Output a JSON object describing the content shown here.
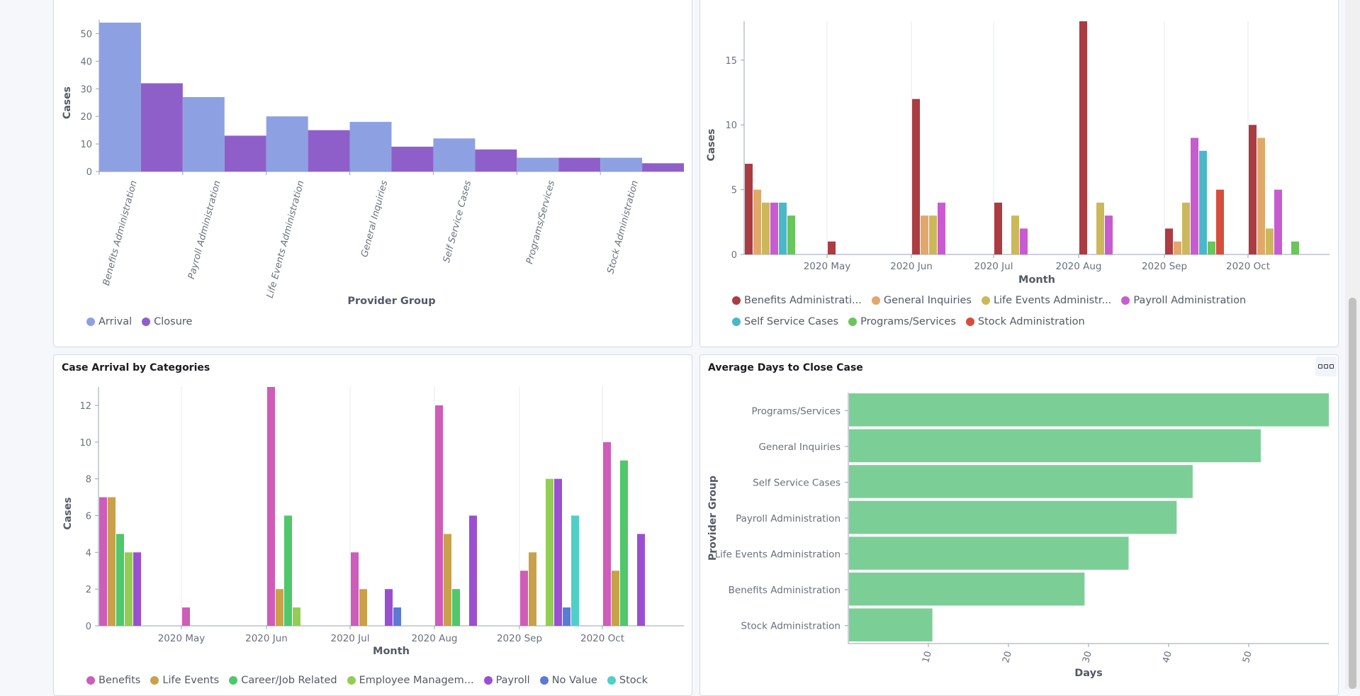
{
  "panels": {
    "case_arrival_closure": {
      "title": "",
      "legend": [
        {
          "label": "Arrival",
          "color": "#8da0e2"
        },
        {
          "label": "Closure",
          "color": "#8f5fc9"
        }
      ]
    },
    "case_arrival_provider_group": {
      "title": "",
      "legend": [
        {
          "label": "Benefits Administrati...",
          "color": "#aa3c42"
        },
        {
          "label": "General Inquiries",
          "color": "#e0a86a"
        },
        {
          "label": "Life Events Administr...",
          "color": "#cbb85a"
        },
        {
          "label": "Payroll Administration",
          "color": "#c75bcf"
        },
        {
          "label": "Self Service Cases",
          "color": "#4ab8c8"
        },
        {
          "label": "Programs/Services",
          "color": "#6ac55c"
        },
        {
          "label": "Stock Administration",
          "color": "#d64e3c"
        }
      ]
    },
    "case_arrival_categories": {
      "title": "Case Arrival by Categories",
      "legend": [
        {
          "label": "Benefits",
          "color": "#cf5cb8"
        },
        {
          "label": "Life Events",
          "color": "#c9a14a"
        },
        {
          "label": "Career/Job Related",
          "color": "#4fc76a"
        },
        {
          "label": "Employee Managem...",
          "color": "#93cd55"
        },
        {
          "label": "Payroll",
          "color": "#9a4fd0"
        },
        {
          "label": "No Value",
          "color": "#5a7ad6"
        },
        {
          "label": "Stock",
          "color": "#4fcfc5"
        }
      ]
    },
    "avg_days_close": {
      "title": "Average Days to Close Case",
      "menu_icon": "options-icon"
    }
  },
  "chart_data": [
    {
      "type": "bar",
      "xlabel": "Provider Group",
      "ylabel": "Cases",
      "ylim": [
        0,
        55
      ],
      "yticks": [
        0,
        10,
        20,
        30,
        40,
        50
      ],
      "categories": [
        "Benefits Administration",
        "Payroll Administration",
        "Life Events Administration",
        "General Inquiries",
        "Self Service Cases",
        "Programs/Services",
        "Stock Administration"
      ],
      "series": [
        {
          "name": "Arrival",
          "color": "#8da0e2",
          "values": [
            54,
            27,
            20,
            18,
            12,
            5,
            5
          ]
        },
        {
          "name": "Closure",
          "color": "#8f5fc9",
          "values": [
            32,
            13,
            15,
            9,
            8,
            5,
            3
          ]
        }
      ]
    },
    {
      "type": "bar",
      "xlabel": "Month",
      "ylabel": "Cases",
      "ylim": [
        0,
        18
      ],
      "yticks": [
        0,
        5,
        10,
        15
      ],
      "x_ticks": [
        "2020 May",
        "2020 Jun",
        "2020 Jul",
        "2020 Aug",
        "2020 Sep",
        "2020 Oct"
      ],
      "series": [
        {
          "name": "Benefits Administration",
          "color": "#aa3c42",
          "values": [
            {
              "x": "2020 Apr",
              "y": 7
            },
            {
              "x": "2020 May",
              "y": 1
            },
            {
              "x": "2020 Jun",
              "y": 12
            },
            {
              "x": "2020 Jul",
              "y": 4
            },
            {
              "x": "2020 Aug",
              "y": 18
            },
            {
              "x": "2020 Sep",
              "y": 2
            },
            {
              "x": "2020 Oct",
              "y": 10
            }
          ]
        },
        {
          "name": "General Inquiries",
          "color": "#e0a86a",
          "values": [
            {
              "x": "2020 Apr",
              "y": 5
            },
            {
              "x": "2020 Jun",
              "y": 3
            },
            {
              "x": "2020 Sep",
              "y": 1
            },
            {
              "x": "2020 Oct",
              "y": 9
            }
          ]
        },
        {
          "name": "Life Events Administration",
          "color": "#cbb85a",
          "values": [
            {
              "x": "2020 Apr",
              "y": 4
            },
            {
              "x": "2020 Jun",
              "y": 3
            },
            {
              "x": "2020 Jul",
              "y": 3
            },
            {
              "x": "2020 Aug",
              "y": 4
            },
            {
              "x": "2020 Sep",
              "y": 4
            },
            {
              "x": "2020 Oct",
              "y": 2
            }
          ]
        },
        {
          "name": "Payroll Administration",
          "color": "#c75bcf",
          "values": [
            {
              "x": "2020 Apr",
              "y": 4
            },
            {
              "x": "2020 Jun",
              "y": 4
            },
            {
              "x": "2020 Jul",
              "y": 2
            },
            {
              "x": "2020 Aug",
              "y": 3
            },
            {
              "x": "2020 Sep",
              "y": 9
            },
            {
              "x": "2020 Oct",
              "y": 5
            }
          ]
        },
        {
          "name": "Self Service Cases",
          "color": "#4ab8c8",
          "values": [
            {
              "x": "2020 Apr",
              "y": 4
            },
            {
              "x": "2020 Sep",
              "y": 8
            }
          ]
        },
        {
          "name": "Programs/Services",
          "color": "#6ac55c",
          "values": [
            {
              "x": "2020 Apr",
              "y": 3
            },
            {
              "x": "2020 Sep",
              "y": 1
            },
            {
              "x": "2020 Oct",
              "y": 1
            }
          ]
        },
        {
          "name": "Stock Administration",
          "color": "#d64e3c",
          "values": [
            {
              "x": "2020 Sep",
              "y": 5
            }
          ]
        }
      ]
    },
    {
      "type": "bar",
      "title": "Case Arrival by Categories",
      "xlabel": "Month",
      "ylabel": "Cases",
      "ylim": [
        0,
        13
      ],
      "yticks": [
        0,
        2,
        4,
        6,
        8,
        10,
        12
      ],
      "x_ticks": [
        "2020 May",
        "2020 Jun",
        "2020 Jul",
        "2020 Aug",
        "2020 Sep",
        "2020 Oct"
      ],
      "series": [
        {
          "name": "Benefits",
          "color": "#cf5cb8",
          "values": [
            {
              "x": "2020 Apr",
              "y": 7
            },
            {
              "x": "2020 May",
              "y": 1
            },
            {
              "x": "2020 Jun",
              "y": 13
            },
            {
              "x": "2020 Jul",
              "y": 4
            },
            {
              "x": "2020 Aug",
              "y": 12
            },
            {
              "x": "2020 Sep",
              "y": 3
            },
            {
              "x": "2020 Oct",
              "y": 10
            }
          ]
        },
        {
          "name": "Life Events",
          "color": "#c9a14a",
          "values": [
            {
              "x": "2020 Apr",
              "y": 7
            },
            {
              "x": "2020 Jun",
              "y": 2
            },
            {
              "x": "2020 Jul",
              "y": 2
            },
            {
              "x": "2020 Aug",
              "y": 5
            },
            {
              "x": "2020 Sep",
              "y": 4
            },
            {
              "x": "2020 Oct",
              "y": 3
            }
          ]
        },
        {
          "name": "Career/Job Related",
          "color": "#4fc76a",
          "values": [
            {
              "x": "2020 Apr",
              "y": 5
            },
            {
              "x": "2020 Jun",
              "y": 6
            },
            {
              "x": "2020 Aug",
              "y": 2
            },
            {
              "x": "2020 Oct",
              "y": 9
            }
          ]
        },
        {
          "name": "Employee Management",
          "color": "#93cd55",
          "values": [
            {
              "x": "2020 Apr",
              "y": 4
            },
            {
              "x": "2020 Jun",
              "y": 1
            },
            {
              "x": "2020 Sep",
              "y": 8
            }
          ]
        },
        {
          "name": "Payroll",
          "color": "#9a4fd0",
          "values": [
            {
              "x": "2020 Apr",
              "y": 4
            },
            {
              "x": "2020 Jul",
              "y": 2
            },
            {
              "x": "2020 Aug",
              "y": 6
            },
            {
              "x": "2020 Sep",
              "y": 8
            },
            {
              "x": "2020 Oct",
              "y": 5
            }
          ]
        },
        {
          "name": "No Value",
          "color": "#5a7ad6",
          "values": [
            {
              "x": "2020 Jul",
              "y": 1
            },
            {
              "x": "2020 Sep",
              "y": 1
            }
          ]
        },
        {
          "name": "Stock",
          "color": "#4fcfc5",
          "values": [
            {
              "x": "2020 Sep",
              "y": 6
            }
          ]
        }
      ]
    },
    {
      "type": "bar",
      "orientation": "horizontal",
      "title": "Average Days to Close Case",
      "xlabel": "Days",
      "ylabel": "Provider Group",
      "xlim": [
        0,
        60
      ],
      "xticks": [
        10,
        20,
        30,
        40,
        50
      ],
      "color": "#7bcf96",
      "categories": [
        "Programs/Services",
        "General Inquiries",
        "Self Service Cases",
        "Payroll Administration",
        "Life Events Administration",
        "Benefits Administration",
        "Stock Administration"
      ],
      "values": [
        60,
        51.5,
        43,
        41,
        35,
        29.5,
        10.5
      ]
    }
  ]
}
